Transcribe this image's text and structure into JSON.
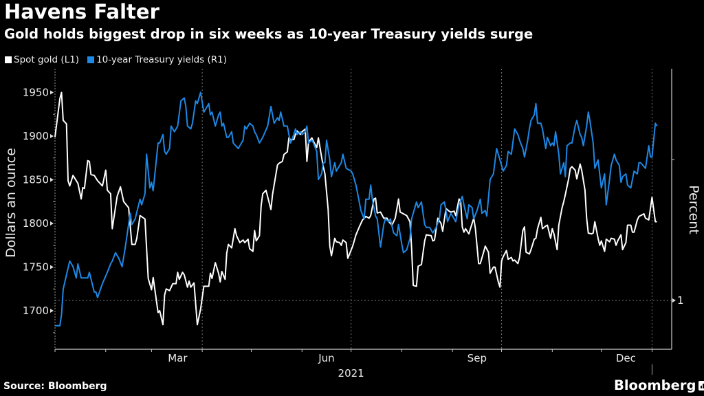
{
  "header": {
    "title": "Havens Falter",
    "subtitle": "Gold holds biggest drop in six weeks as 10-year Treasury yields surge"
  },
  "footer": {
    "source": "Source: Bloomberg",
    "brand": "Bloomberg",
    "brand_icon": "bar-chart-icon"
  },
  "chart_data": {
    "type": "line",
    "title": "Havens Falter",
    "subtitle": "Gold holds biggest drop in six weeks as 10-year Treasury yields surge",
    "x_unit": "days since 2021-01-01",
    "xlim": [
      0,
      377
    ],
    "x_ticks": [
      0,
      31,
      59,
      90,
      120,
      151,
      181,
      212,
      243,
      273,
      304,
      334,
      365
    ],
    "x_tick_labels": [
      {
        "label": "Mar",
        "x": 75
      },
      {
        "label": "Jun",
        "x": 166
      },
      {
        "label": "Sep",
        "x": 258
      },
      {
        "label": "Dec",
        "x": 349
      }
    ],
    "x_year_label": {
      "label": "2021",
      "x": 181
    },
    "x_gridlines": [
      90,
      181,
      273,
      365
    ],
    "left_axis": {
      "label": "Dollars an ounce",
      "ylim": [
        1660,
        1962
      ],
      "ticks": [
        1700,
        1750,
        1800,
        1850,
        1900,
        1950
      ],
      "minor_ticks": [
        1675,
        1725,
        1775,
        1825,
        1875,
        1925
      ]
    },
    "right_axis": {
      "label": "Percent",
      "ylim": [
        0.82,
        1.82
      ],
      "ticks": [
        1
      ],
      "tick_labels": [
        "1"
      ],
      "minor_ticks": [
        1.5
      ],
      "gridline": 1
    },
    "legend": {
      "placement": "top-left",
      "entries": [
        {
          "name": "Spot gold (L1)",
          "color": "#ffffff"
        },
        {
          "name": "10-year Treasury yields (R1)",
          "color": "#1e88e5"
        }
      ]
    },
    "series": [
      {
        "name": "Spot gold (L1)",
        "axis": "left",
        "color": "#ffffff",
        "x": [
          0,
          3,
          4,
          5,
          7,
          8,
          9,
          11,
          14,
          16,
          17,
          18,
          20,
          21,
          22,
          24,
          26,
          29,
          31,
          32,
          34,
          35,
          38,
          40,
          42,
          45,
          47,
          49,
          50,
          52,
          55,
          57,
          59,
          60,
          63,
          64,
          66,
          67,
          68,
          70,
          72,
          74,
          75,
          76,
          78,
          79,
          81,
          82,
          83,
          85,
          87,
          89,
          91,
          94,
          95,
          96,
          98,
          100,
          101,
          102,
          104,
          105,
          106,
          108,
          110,
          111,
          113,
          115,
          116,
          118,
          119,
          121,
          122,
          123,
          125,
          126,
          127,
          129,
          132,
          133,
          136,
          137,
          139,
          140,
          142,
          143,
          144,
          146,
          147,
          148,
          150,
          151,
          153,
          154,
          155,
          157,
          158,
          160,
          161,
          163,
          164,
          165,
          167,
          168,
          169,
          171,
          172,
          174,
          175,
          176,
          178,
          179,
          182,
          184,
          186,
          188,
          190,
          192,
          193,
          195,
          196,
          197,
          199,
          201,
          203,
          204,
          206,
          208,
          210,
          211,
          213,
          215,
          217,
          218,
          219,
          221,
          222,
          224,
          226,
          227,
          230,
          231,
          232,
          234,
          236,
          237,
          239,
          241,
          242,
          244,
          245,
          247,
          248,
          249,
          250,
          251,
          253,
          254,
          256,
          257,
          259,
          260,
          262,
          263,
          265,
          266,
          268,
          269,
          271,
          272,
          273,
          274,
          276,
          277,
          279,
          280,
          281,
          283,
          284,
          286,
          287,
          288,
          290,
          291,
          293,
          294,
          295,
          297,
          298,
          300,
          301,
          303,
          304,
          305,
          307,
          308,
          310,
          311,
          312,
          314,
          315,
          316,
          318,
          319,
          321,
          322,
          324,
          325,
          326,
          328,
          329,
          330,
          332,
          333,
          334,
          336,
          337,
          339,
          340,
          342,
          343,
          344,
          346,
          347,
          349,
          350,
          352,
          353,
          354,
          356,
          357,
          358,
          360,
          361,
          363,
          365,
          367,
          368
        ],
        "values": [
          1899,
          1943,
          1950,
          1918,
          1914,
          1849,
          1843,
          1855,
          1846,
          1828,
          1841,
          1840,
          1872,
          1871,
          1856,
          1855,
          1849,
          1843,
          1861,
          1838,
          1834,
          1794,
          1831,
          1842,
          1825,
          1818,
          1776,
          1776,
          1783,
          1809,
          1805,
          1737,
          1724,
          1738,
          1698,
          1700,
          1684,
          1718,
          1725,
          1723,
          1731,
          1731,
          1744,
          1736,
          1744,
          1741,
          1727,
          1734,
          1727,
          1732,
          1684,
          1702,
          1728,
          1728,
          1743,
          1737,
          1755,
          1743,
          1733,
          1745,
          1736,
          1766,
          1776,
          1772,
          1794,
          1786,
          1778,
          1781,
          1778,
          1782,
          1771,
          1768,
          1792,
          1780,
          1786,
          1820,
          1834,
          1838,
          1816,
          1833,
          1867,
          1869,
          1871,
          1879,
          1882,
          1898,
          1896,
          1896,
          1902,
          1906,
          1902,
          1905,
          1908,
          1871,
          1893,
          1898,
          1894,
          1887,
          1898,
          1876,
          1865,
          1857,
          1816,
          1774,
          1763,
          1783,
          1779,
          1778,
          1775,
          1781,
          1778,
          1760,
          1774,
          1787,
          1796,
          1804,
          1808,
          1806,
          1809,
          1828,
          1829,
          1812,
          1813,
          1806,
          1806,
          1802,
          1798,
          1806,
          1828,
          1813,
          1811,
          1809,
          1802,
          1772,
          1729,
          1728,
          1751,
          1753,
          1780,
          1787,
          1786,
          1780,
          1781,
          1806,
          1800,
          1791,
          1817,
          1814,
          1813,
          1814,
          1809,
          1828,
          1825,
          1796,
          1790,
          1794,
          1788,
          1794,
          1806,
          1794,
          1754,
          1754,
          1767,
          1774,
          1767,
          1743,
          1750,
          1750,
          1733,
          1727,
          1757,
          1762,
          1769,
          1759,
          1761,
          1757,
          1758,
          1754,
          1761,
          1792,
          1796,
          1767,
          1765,
          1770,
          1782,
          1783,
          1794,
          1807,
          1794,
          1797,
          1798,
          1783,
          1794,
          1788,
          1770,
          1798,
          1818,
          1825,
          1833,
          1851,
          1863,
          1865,
          1861,
          1851,
          1868,
          1861,
          1838,
          1806,
          1789,
          1788,
          1789,
          1802,
          1783,
          1775,
          1780,
          1768,
          1782,
          1779,
          1783,
          1782,
          1775,
          1780,
          1787,
          1770,
          1778,
          1798,
          1798,
          1790,
          1790,
          1804,
          1808,
          1809,
          1811,
          1806,
          1804,
          1830,
          1802,
          1802
        ]
      },
      {
        "name": "10-year Treasury yields (R1)",
        "axis": "right",
        "color": "#1e88e5",
        "x": [
          0,
          3,
          4,
          5,
          9,
          11,
          13,
          14,
          16,
          19,
          20,
          21,
          24,
          25,
          26,
          29,
          32,
          34,
          35,
          37,
          39,
          41,
          43,
          46,
          47,
          49,
          52,
          53,
          55,
          56,
          58,
          59,
          60,
          63,
          64,
          66,
          67,
          68,
          70,
          71,
          73,
          75,
          77,
          79,
          80,
          81,
          83,
          84,
          86,
          87,
          89,
          91,
          94,
          95,
          96,
          98,
          100,
          101,
          102,
          103,
          105,
          106,
          108,
          109,
          112,
          115,
          116,
          117,
          119,
          121,
          122,
          123,
          125,
          127,
          130,
          132,
          133,
          134,
          136,
          137,
          138,
          140,
          142,
          144,
          146,
          147,
          148,
          150,
          151,
          153,
          154,
          155,
          157,
          158,
          160,
          161,
          163,
          164,
          165,
          166,
          168,
          169,
          171,
          172,
          174,
          175,
          176,
          178,
          181,
          182,
          184,
          186,
          187,
          189,
          190,
          192,
          193,
          194,
          196,
          197,
          199,
          201,
          202,
          204,
          205,
          207,
          209,
          210,
          212,
          213,
          215,
          217,
          218,
          221,
          222,
          224,
          226,
          227,
          229,
          231,
          233,
          235,
          236,
          238,
          239,
          240,
          242,
          244,
          245,
          247,
          249,
          250,
          252,
          253,
          255,
          256,
          258,
          260,
          261,
          263,
          264,
          266,
          268,
          270,
          272,
          274,
          276,
          277,
          279,
          281,
          283,
          284,
          286,
          287,
          289,
          290,
          291,
          293,
          294,
          295,
          297,
          298,
          300,
          301,
          303,
          304,
          305,
          306,
          308,
          309,
          311,
          312,
          313,
          315,
          316,
          318,
          319,
          321,
          322,
          323,
          325,
          326,
          327,
          329,
          330,
          332,
          333,
          334,
          336,
          337,
          339,
          340,
          342,
          343,
          345,
          346,
          347,
          349,
          350,
          352,
          353,
          354,
          356,
          357,
          358,
          361,
          363,
          364,
          365,
          367,
          368
        ],
        "values": [
          0.91,
          0.91,
          0.95,
          1.04,
          1.14,
          1.12,
          1.08,
          1.13,
          1.08,
          1.08,
          1.08,
          1.1,
          1.03,
          1.03,
          1.01,
          1.06,
          1.1,
          1.13,
          1.14,
          1.17,
          1.15,
          1.12,
          1.19,
          1.31,
          1.27,
          1.29,
          1.36,
          1.34,
          1.38,
          1.52,
          1.4,
          1.42,
          1.39,
          1.56,
          1.56,
          1.59,
          1.53,
          1.52,
          1.54,
          1.62,
          1.6,
          1.62,
          1.71,
          1.72,
          1.69,
          1.62,
          1.61,
          1.63,
          1.71,
          1.7,
          1.74,
          1.67,
          1.7,
          1.66,
          1.67,
          1.62,
          1.66,
          1.67,
          1.62,
          1.63,
          1.58,
          1.58,
          1.6,
          1.56,
          1.54,
          1.57,
          1.62,
          1.61,
          1.63,
          1.62,
          1.6,
          1.59,
          1.56,
          1.58,
          1.62,
          1.69,
          1.66,
          1.63,
          1.65,
          1.64,
          1.67,
          1.62,
          1.62,
          1.56,
          1.59,
          1.61,
          1.59,
          1.6,
          1.59,
          1.6,
          1.62,
          1.56,
          1.57,
          1.56,
          1.53,
          1.43,
          1.45,
          1.49,
          1.49,
          1.57,
          1.5,
          1.44,
          1.49,
          1.46,
          1.48,
          1.49,
          1.52,
          1.47,
          1.46,
          1.45,
          1.41,
          1.35,
          1.32,
          1.29,
          1.36,
          1.36,
          1.41,
          1.36,
          1.3,
          1.29,
          1.19,
          1.27,
          1.29,
          1.28,
          1.29,
          1.24,
          1.23,
          1.27,
          1.2,
          1.17,
          1.18,
          1.22,
          1.29,
          1.35,
          1.33,
          1.35,
          1.27,
          1.26,
          1.26,
          1.24,
          1.26,
          1.29,
          1.34,
          1.35,
          1.32,
          1.28,
          1.31,
          1.29,
          1.28,
          1.34,
          1.37,
          1.34,
          1.29,
          1.34,
          1.33,
          1.29,
          1.32,
          1.36,
          1.31,
          1.32,
          1.3,
          1.43,
          1.45,
          1.54,
          1.5,
          1.46,
          1.48,
          1.53,
          1.52,
          1.61,
          1.59,
          1.57,
          1.54,
          1.51,
          1.57,
          1.61,
          1.64,
          1.66,
          1.7,
          1.63,
          1.63,
          1.61,
          1.54,
          1.58,
          1.55,
          1.56,
          1.55,
          1.6,
          1.52,
          1.45,
          1.49,
          1.44,
          1.55,
          1.56,
          1.56,
          1.62,
          1.64,
          1.59,
          1.58,
          1.55,
          1.62,
          1.67,
          1.64,
          1.56,
          1.47,
          1.5,
          1.45,
          1.4,
          1.45,
          1.34,
          1.43,
          1.48,
          1.52,
          1.5,
          1.48,
          1.42,
          1.44,
          1.45,
          1.41,
          1.4,
          1.43,
          1.46,
          1.45,
          1.49,
          1.49,
          1.47,
          1.55,
          1.51,
          1.51,
          1.63,
          1.62
        ]
      }
    ]
  }
}
